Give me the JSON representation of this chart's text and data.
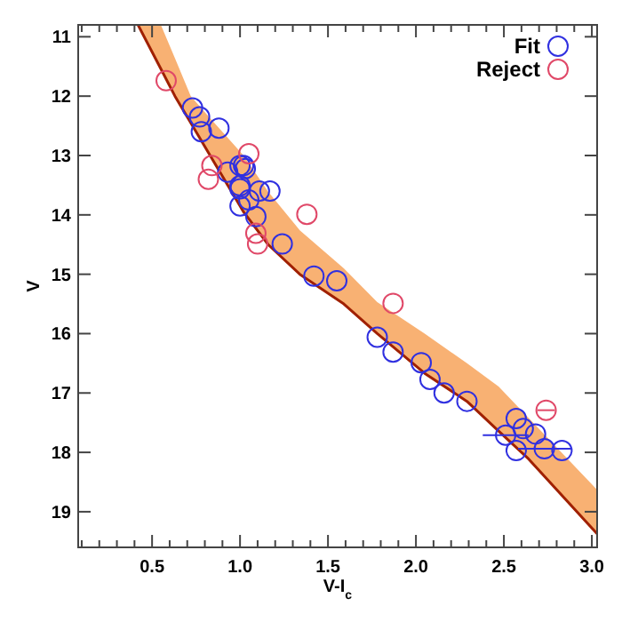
{
  "chart_data": {
    "type": "scatter",
    "xlabel": "V-I$_{c}$",
    "ylabel": "V",
    "xlim": [
      0.08,
      3.03
    ],
    "ylim": [
      19.6,
      10.8
    ],
    "xticks": [
      {
        "value": 0.1,
        "label": null
      },
      {
        "value": 0.2,
        "label": null
      },
      {
        "value": 0.3,
        "label": null
      },
      {
        "value": 0.4,
        "label": null
      },
      0.5,
      {
        "value": 0.6,
        "label": null
      },
      {
        "value": 0.7,
        "label": null
      },
      {
        "value": 0.8,
        "label": null
      },
      {
        "value": 0.9,
        "label": null
      },
      {
        "value": 1,
        "label": "1.0"
      },
      {
        "value": 1.1,
        "label": null
      },
      {
        "value": 1.2,
        "label": null
      },
      {
        "value": 1.3,
        "label": null
      },
      {
        "value": 1.4,
        "label": null
      },
      1.5,
      {
        "value": 1.6,
        "label": null
      },
      {
        "value": 1.7,
        "label": null
      },
      {
        "value": 1.8,
        "label": null
      },
      {
        "value": 1.9,
        "label": null
      },
      {
        "value": 2,
        "label": "2.0"
      },
      {
        "value": 2.1,
        "label": null
      },
      {
        "value": 2.2,
        "label": null
      },
      {
        "value": 2.3,
        "label": null
      },
      {
        "value": 2.4,
        "label": null
      },
      2.5,
      {
        "value": 2.6,
        "label": null
      },
      {
        "value": 2.7,
        "label": null
      },
      {
        "value": 2.8,
        "label": null
      },
      {
        "value": 2.9,
        "label": null
      },
      {
        "value": 3,
        "label": "3.0"
      }
    ],
    "yticks": [
      11,
      12,
      13,
      14,
      15,
      16,
      17,
      18,
      19
    ],
    "legend": "top right",
    "marker": "circle",
    "series": [
      {
        "type": "line",
        "marker": "none",
        "color": "#a02000",
        "x": [
          0.42,
          0.55,
          0.63,
          0.72,
          0.83,
          1.02,
          1.16,
          1.34,
          1.59,
          1.78,
          2.05,
          2.29,
          2.47,
          2.64,
          3.03
        ],
        "values": [
          10.8,
          11.54,
          12,
          12.45,
          13,
          13.95,
          14.5,
          15,
          15.5,
          16,
          16.67,
          17.14,
          17.64,
          18.11,
          19.37
        ],
        "lower": [
          10.8,
          10.8,
          11.36,
          12,
          12.37,
          13,
          13.61,
          14.26,
          14.9,
          15.47,
          16,
          16.5,
          16.89,
          17.42,
          18.63
        ],
        "upper": [
          10.8,
          11.54,
          12,
          12.45,
          13,
          13.95,
          14.5,
          15,
          15.5,
          16,
          16.67,
          17.14,
          17.64,
          18.11,
          19.37
        ]
      },
      {
        "name": "Fit",
        "color": "#3030e0",
        "x": [
          0.73,
          0.77,
          0.78,
          0.88,
          1.02,
          1.0,
          1.03,
          0.93,
          1.0,
          1.0,
          1.11,
          1.17,
          1.05,
          1.0,
          1.09,
          1.24,
          1.42,
          1.55,
          1.78,
          1.87,
          2.03,
          2.08,
          2.16,
          2.29,
          2.57,
          2.61,
          2.68,
          2.51,
          2.57,
          2.73,
          2.83
        ],
        "values": [
          12.2,
          12.35,
          12.6,
          12.54,
          13.17,
          13.17,
          13.22,
          13.28,
          13.51,
          13.56,
          13.6,
          13.6,
          13.75,
          13.85,
          14.03,
          14.49,
          15.03,
          15.11,
          16.06,
          16.31,
          16.49,
          16.77,
          17.0,
          17.14,
          17.43,
          17.6,
          17.69,
          17.71,
          17.97,
          17.94,
          17.97
        ],
        "xerrors": [
          null,
          null,
          null,
          null,
          null,
          null,
          null,
          null,
          null,
          null,
          null,
          null,
          null,
          null,
          null,
          null,
          null,
          null,
          null,
          null,
          null,
          null,
          null,
          null,
          null,
          null,
          null,
          0.13,
          null,
          0.15,
          null
        ]
      },
      {
        "name": "Reject",
        "color": "#e04868",
        "x": [
          0.58,
          1.05,
          0.84,
          0.82,
          1.38,
          1.09,
          1.1,
          1.87,
          2.74
        ],
        "values": [
          11.74,
          12.97,
          13.17,
          13.4,
          13.99,
          14.31,
          14.49,
          15.49,
          17.29
        ],
        "xerrors": [
          null,
          null,
          null,
          null,
          null,
          null,
          null,
          null,
          0.05
        ]
      }
    ]
  }
}
